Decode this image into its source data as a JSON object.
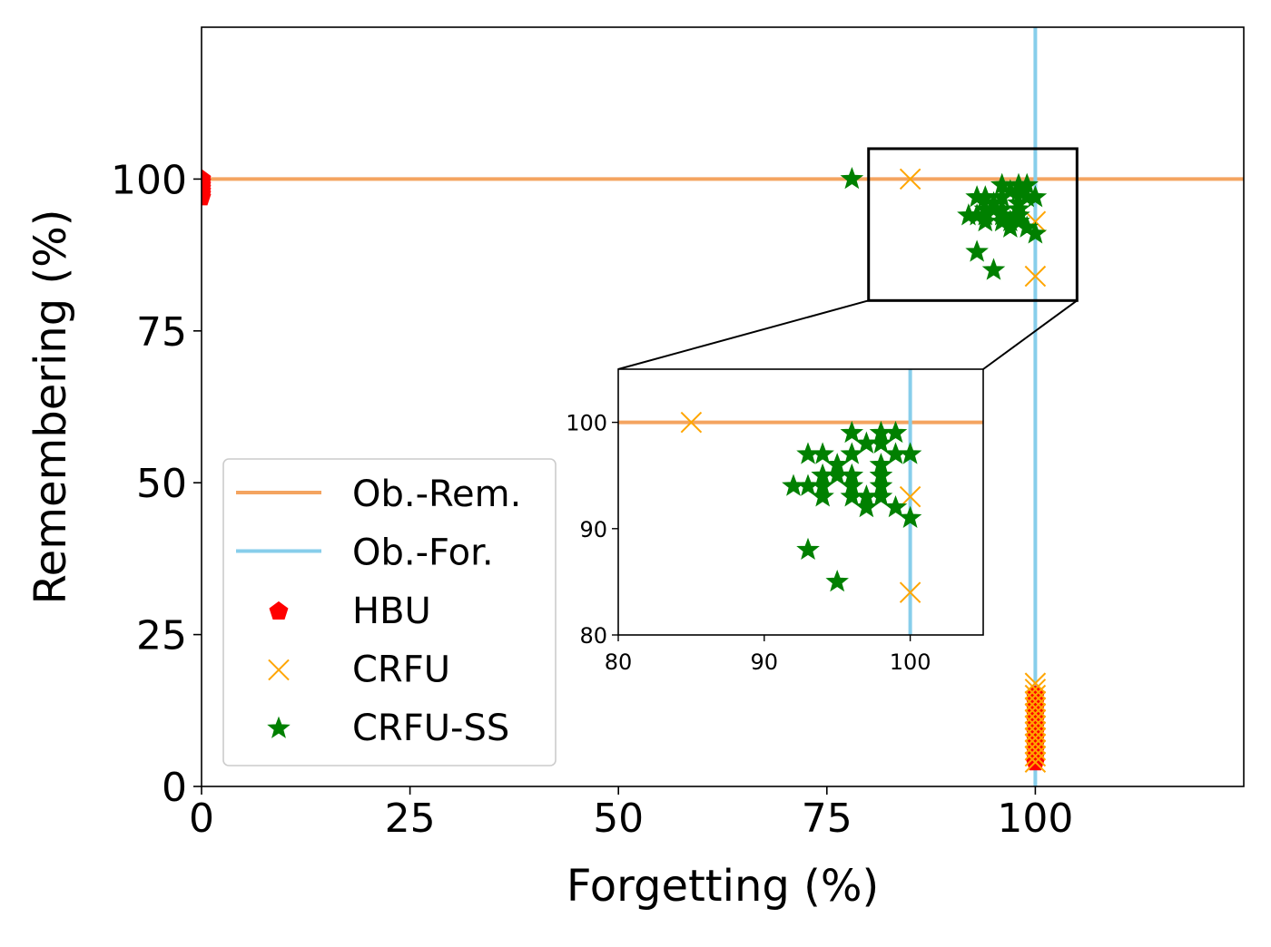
{
  "chart_data": {
    "type": "scatter",
    "title": "",
    "xlabel": "Forgetting (%)",
    "ylabel": "Remembering (%)",
    "xlim": [
      0,
      125
    ],
    "ylim": [
      0,
      125
    ],
    "xticks": [
      0,
      25,
      50,
      75,
      100
    ],
    "yticks": [
      0,
      25,
      50,
      75,
      100
    ],
    "grid": false,
    "legend_position": "lower-left",
    "reference_lines": [
      {
        "name": "Ob.-Rem.",
        "orientation": "horizontal",
        "value": 100,
        "color": "#f4a460"
      },
      {
        "name": "Ob.-For.",
        "orientation": "vertical",
        "value": 100,
        "color": "#87ceeb"
      }
    ],
    "series": [
      {
        "name": "HBU",
        "marker": "pentagon",
        "color": "#ff0000",
        "points": [
          [
            0,
            100
          ],
          [
            0,
            99.5
          ],
          [
            0,
            99
          ],
          [
            0,
            98.5
          ],
          [
            0,
            98
          ],
          [
            0,
            97.5
          ],
          [
            0,
            97
          ],
          [
            100,
            4
          ],
          [
            100,
            5
          ],
          [
            100,
            6
          ],
          [
            100,
            7
          ],
          [
            100,
            8
          ],
          [
            100,
            9
          ],
          [
            100,
            10
          ],
          [
            100,
            11
          ],
          [
            100,
            12
          ],
          [
            100,
            13
          ],
          [
            100,
            14
          ],
          [
            100,
            15
          ]
        ]
      },
      {
        "name": "CRFU",
        "marker": "x",
        "color": "#ffa500",
        "points": [
          [
            85,
            100
          ],
          [
            100,
            84
          ],
          [
            100,
            93
          ],
          [
            100,
            4
          ],
          [
            100,
            5
          ],
          [
            100,
            6
          ],
          [
            100,
            7
          ],
          [
            100,
            8
          ],
          [
            100,
            9
          ],
          [
            100,
            10
          ],
          [
            100,
            11
          ],
          [
            100,
            12
          ],
          [
            100,
            13
          ],
          [
            100,
            14
          ],
          [
            100,
            15
          ],
          [
            100,
            16
          ],
          [
            100,
            17
          ]
        ]
      },
      {
        "name": "CRFU-SS",
        "marker": "star",
        "color": "#008000",
        "points": [
          [
            78,
            100
          ],
          [
            96,
            99
          ],
          [
            98,
            99
          ],
          [
            99,
            99
          ],
          [
            97,
            98
          ],
          [
            98,
            98
          ],
          [
            99,
            97
          ],
          [
            100,
            97
          ],
          [
            93,
            97
          ],
          [
            94,
            97
          ],
          [
            96,
            97
          ],
          [
            95,
            96
          ],
          [
            98,
            96
          ],
          [
            94,
            95
          ],
          [
            95,
            95
          ],
          [
            96,
            95
          ],
          [
            98,
            95
          ],
          [
            93,
            94
          ],
          [
            94,
            94
          ],
          [
            96,
            94
          ],
          [
            98,
            94
          ],
          [
            92,
            94
          ],
          [
            94,
            93
          ],
          [
            96,
            93
          ],
          [
            97,
            93
          ],
          [
            98,
            93
          ],
          [
            97,
            92
          ],
          [
            99,
            92
          ],
          [
            100,
            91
          ],
          [
            93,
            88
          ],
          [
            95,
            85
          ]
        ]
      }
    ],
    "inset": {
      "xlim": [
        80,
        105
      ],
      "ylim": [
        80,
        105
      ],
      "xticks": [
        80,
        90,
        100
      ],
      "yticks": [
        80,
        90,
        100
      ]
    }
  }
}
